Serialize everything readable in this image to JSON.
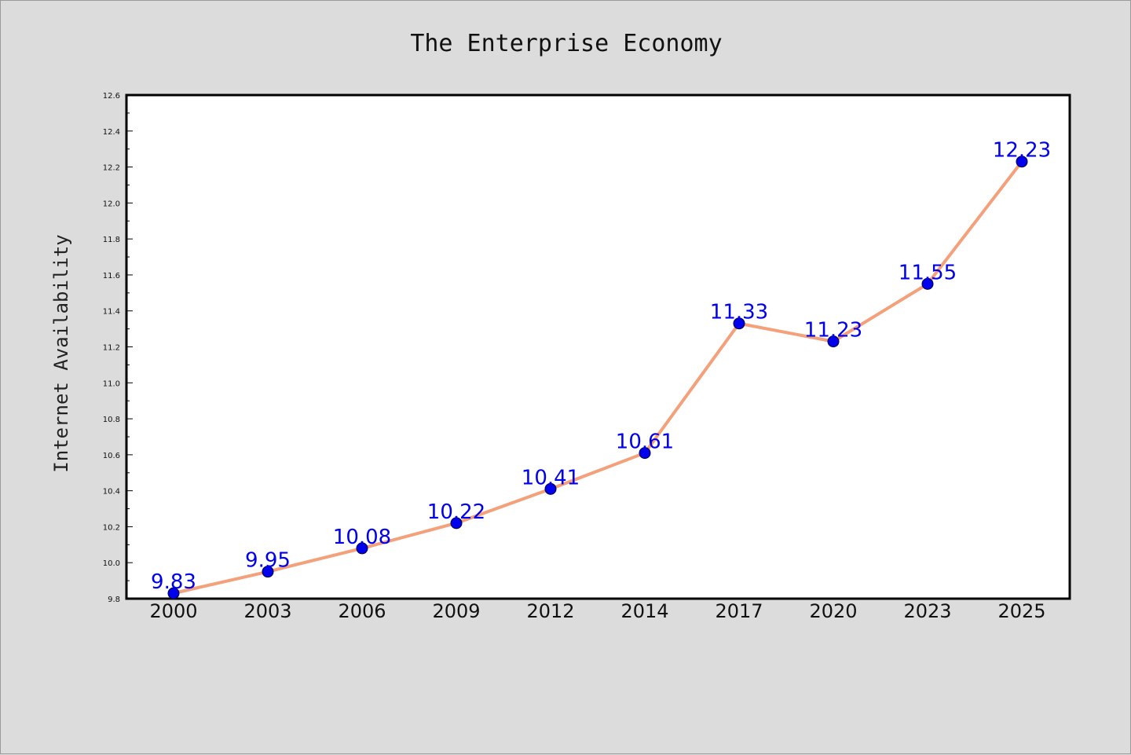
{
  "chart_data": {
    "type": "line",
    "title": "The Enterprise Economy",
    "xlabel": "",
    "ylabel": "Internet Availability",
    "categories": [
      "2000",
      "2003",
      "2006",
      "2009",
      "2012",
      "2014",
      "2017",
      "2020",
      "2023",
      "2025"
    ],
    "series": [
      {
        "values": [
          9.83,
          9.95,
          10.08,
          10.22,
          10.41,
          10.61,
          11.33,
          11.23,
          11.55,
          12.23
        ],
        "data_labels": [
          "9.83",
          "9.95",
          "10.08",
          "10.22",
          "10.41",
          "10.61",
          "11.33",
          "11.23",
          "11.55",
          "12.23"
        ],
        "line_color": "#f4a07a",
        "marker_color": "#0000ee"
      }
    ],
    "ylim": [
      9.8,
      12.6
    ],
    "yticks": [
      "9.8",
      "10.0",
      "10.2",
      "10.4",
      "10.6",
      "10.8",
      "11.0",
      "11.2",
      "11.4",
      "11.6",
      "11.8",
      "12.0",
      "12.2",
      "12.4",
      "12.6"
    ],
    "grid": false,
    "legend": "none",
    "colors": {
      "background": "#dcdcdc",
      "plot_background": "#ffffff",
      "axis": "#000000",
      "label": "#0000ee"
    }
  }
}
